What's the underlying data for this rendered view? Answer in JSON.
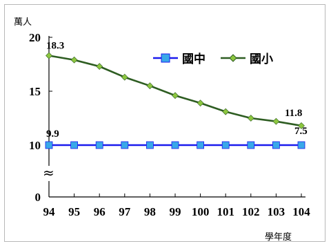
{
  "chart_data": {
    "type": "line",
    "title": "",
    "xlabel": "學年度",
    "ylabel": "萬人",
    "categories": [
      "94",
      "95",
      "96",
      "97",
      "98",
      "99",
      "100",
      "101",
      "102",
      "103",
      "104"
    ],
    "y_ticks": [
      "0",
      "10",
      "15",
      "20"
    ],
    "axis_break": "≈",
    "grid": false,
    "legend_position": "top-right",
    "series": [
      {
        "name": "國中",
        "color": "#1a1aee",
        "marker": "square",
        "marker_color": "#39a8e8",
        "values": [
          9.9,
          9.9,
          9.9,
          9.9,
          9.85,
          9.6,
          9.1,
          8.8,
          8.55,
          8.1,
          7.5
        ]
      },
      {
        "name": "國小",
        "color": "#2e5d22",
        "marker": "diamond",
        "marker_color": "#8cc63f",
        "values": [
          18.3,
          17.9,
          17.3,
          16.3,
          15.5,
          14.6,
          13.9,
          13.1,
          12.5,
          12.2,
          11.8
        ]
      }
    ],
    "annotations": [
      {
        "series": 1,
        "index": 0,
        "text": "18.3"
      },
      {
        "series": 0,
        "index": 0,
        "text": "9.9"
      },
      {
        "series": 1,
        "index": 10,
        "text": "11.8"
      },
      {
        "series": 0,
        "index": 10,
        "text": "7.5"
      }
    ]
  }
}
